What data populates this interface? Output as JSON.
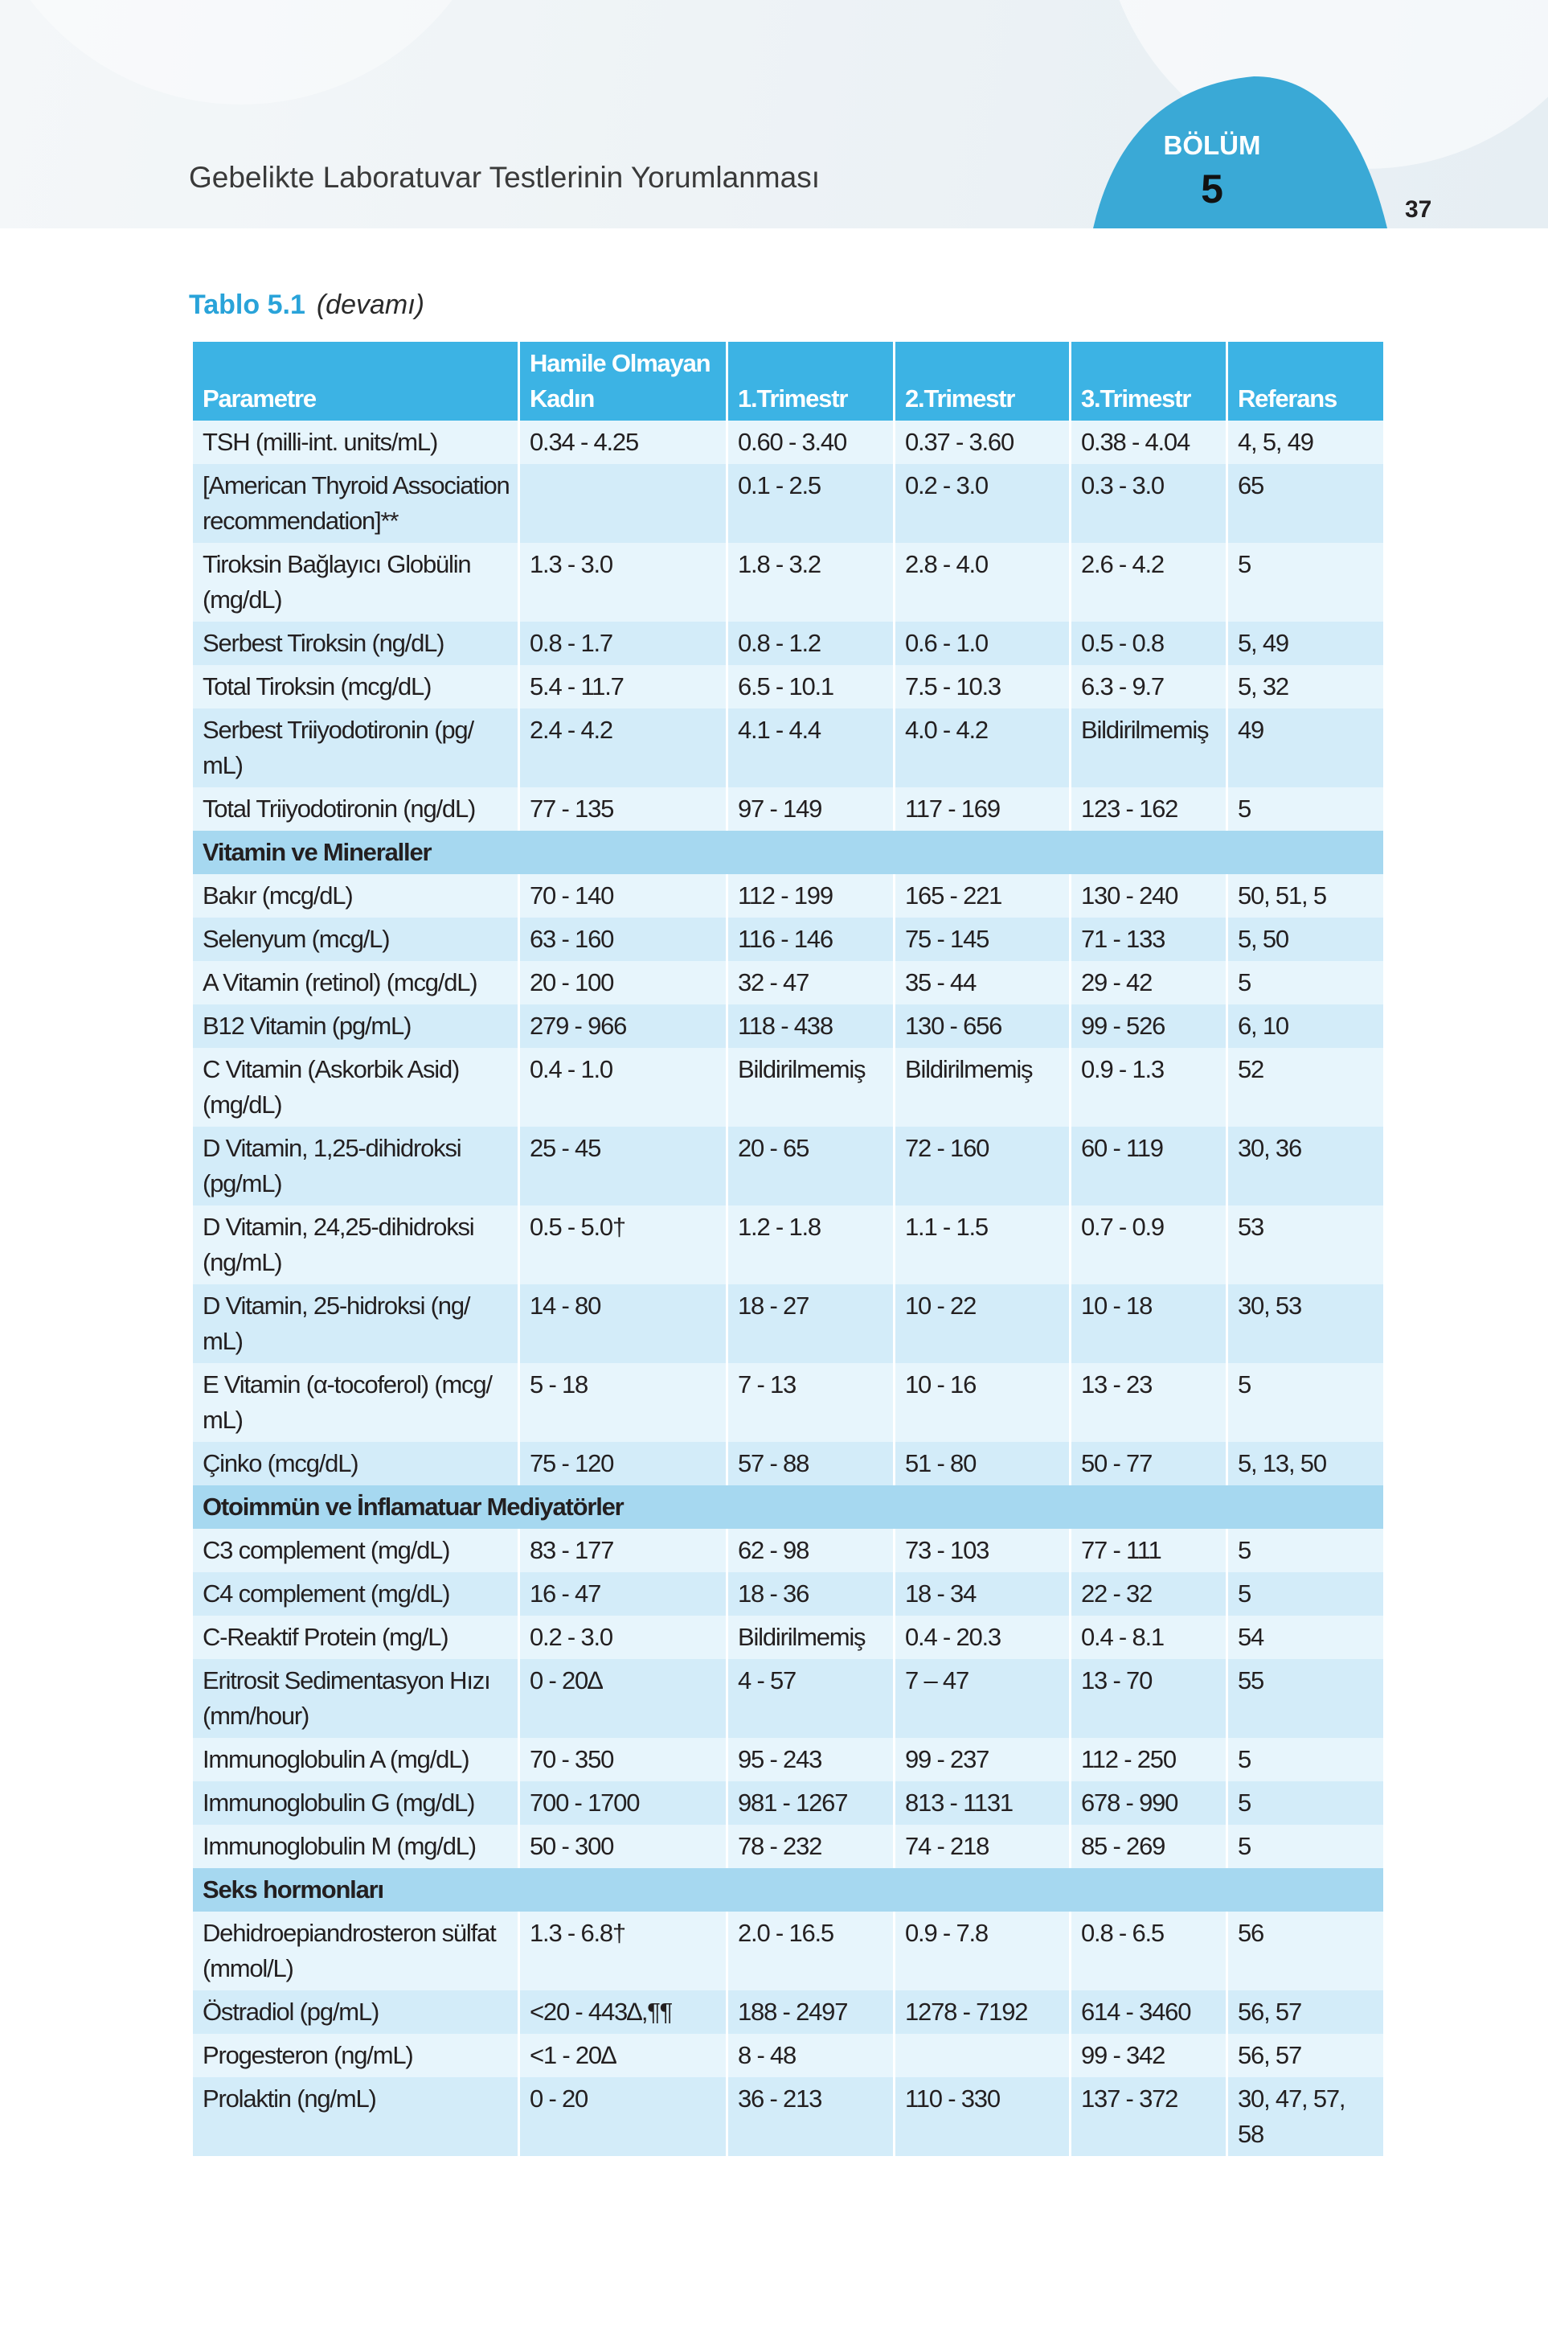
{
  "header": {
    "title": "Gebelikte Laboratuvar Testlerinin Yorumlanması",
    "section_label": "BÖLÜM",
    "section_number": "5",
    "page_number": "37"
  },
  "caption": {
    "label": "Tablo 5.1",
    "note": "(devamı)"
  },
  "table": {
    "columns": [
      "Parametre",
      "Hamile Olmayan Kadın",
      "1.Trimestr",
      "2.Trimestr",
      "3.Trimestr",
      "Referans"
    ],
    "rows": [
      [
        "TSH (milli-int. units/mL)",
        "0.34 - 4.25",
        "0.60 - 3.40",
        "0.37 - 3.60",
        "0.38 - 4.04",
        "4, 5, 49"
      ],
      [
        "[American Thyroid Association recommendation]**",
        null,
        "0.1 - 2.5",
        "0.2 - 3.0",
        "0.3 - 3.0",
        "65"
      ],
      [
        "Tiroksin Bağlayıcı Globülin (mg/dL)",
        "1.3 - 3.0",
        "1.8 - 3.2",
        "2.8 - 4.0",
        "2.6 - 4.2",
        "5"
      ],
      [
        "Serbest Tiroksin (ng/dL)",
        "0.8 - 1.7",
        "0.8 - 1.2",
        "0.6 - 1.0",
        "0.5 - 0.8",
        "5, 49"
      ],
      [
        "Total Tiroksin (mcg/dL)",
        "5.4 - 11.7",
        "6.5 - 10.1",
        "7.5 - 10.3",
        "6.3 - 9.7",
        "5, 32"
      ],
      [
        "Serbest Triiyodotironin (pg/ mL)",
        "2.4 - 4.2",
        "4.1 - 4.4",
        "4.0 - 4.2",
        "Bildirilmemiş",
        "49"
      ],
      [
        "Total Triiyodotironin (ng/dL)",
        "77 - 135",
        "97 - 149",
        "117 - 169",
        "123 - 162",
        "5"
      ],
      {
        "section": "Vitamin ve Mineraller"
      },
      [
        "Bakır (mcg/dL)",
        "70 - 140",
        "112 - 199",
        "165 - 221",
        "130 - 240",
        "50, 51, 5"
      ],
      [
        "Selenyum (mcg/L)",
        "63 - 160",
        "116 - 146",
        "75 - 145",
        "71 - 133",
        "5, 50"
      ],
      [
        "A Vitamin (retinol) (mcg/dL)",
        "20 - 100",
        "32 - 47",
        "35 - 44",
        "29 - 42",
        "5"
      ],
      [
        "B12 Vitamin (pg/mL)",
        "279 - 966",
        "118 - 438",
        "130 - 656",
        "99 - 526",
        "6, 10"
      ],
      [
        "C Vitamin (Askorbik Asid) (mg/dL)",
        "0.4 - 1.0",
        "Bildirilmemiş",
        "Bildirilmemiş",
        "0.9 - 1.3",
        "52"
      ],
      [
        "D Vitamin, 1,25-dihidroksi (pg/mL)",
        "25 - 45",
        "20 - 65",
        "72 - 160",
        "60 - 119",
        "30, 36"
      ],
      [
        "D Vitamin, 24,25-dihidroksi (ng/mL)",
        "0.5 - 5.0†",
        "1.2 - 1.8",
        "1.1 - 1.5",
        "0.7 - 0.9",
        "53"
      ],
      [
        "D Vitamin, 25-hidroksi (ng/ mL)",
        "14 - 80",
        "18 - 27",
        "10 - 22",
        "10 - 18",
        "30, 53"
      ],
      [
        "E Vitamin (α-tocoferol) (mcg/ mL)",
        "5 - 18",
        "7 - 13",
        "10 - 16",
        "13 - 23",
        "5"
      ],
      [
        "Çinko (mcg/dL)",
        "75 - 120",
        "57 - 88",
        "51 - 80",
        "50 - 77",
        "5, 13, 50"
      ],
      {
        "section": "Otoimmün ve İnflamatuar Mediyatörler"
      },
      [
        "C3 complement (mg/dL)",
        "83 - 177",
        "62 - 98",
        "73 - 103",
        "77 - 111",
        "5"
      ],
      [
        "C4 complement (mg/dL)",
        "16 - 47",
        "18 - 36",
        "18 - 34",
        "22 - 32",
        "5"
      ],
      [
        "C-Reaktif Protein (mg/L)",
        "0.2 - 3.0",
        "Bildirilmemiş",
        "0.4 - 20.3",
        "0.4 - 8.1",
        "54"
      ],
      [
        "Eritrosit Sedimentasyon Hızı (mm/hour)",
        "0 - 20∆",
        "4 - 57",
        "7 – 47",
        "13 - 70",
        "55"
      ],
      [
        "Immunoglobulin A (mg/dL)",
        "70 - 350",
        "95 - 243",
        "99 - 237",
        "112 - 250",
        "5"
      ],
      [
        "Immunoglobulin G (mg/dL)",
        "700 - 1700",
        "981 - 1267",
        "813 - 1131",
        "678 - 990",
        "5"
      ],
      [
        "Immunoglobulin M (mg/dL)",
        "50 - 300",
        "78 - 232",
        "74 - 218",
        "85 - 269",
        "5"
      ],
      {
        "section": "Seks hormonları"
      },
      [
        "Dehidroepiandrosteron sülfat (mmol/L)",
        "1.3 - 6.8†",
        "2.0 - 16.5",
        "0.9 - 7.8",
        "0.8 - 6.5",
        "56"
      ],
      [
        "Östradiol (pg/mL)",
        "<20 - 443∆,¶¶",
        "188 - 2497",
        "1278 - 7192",
        "614 - 3460",
        "56, 57"
      ],
      [
        "Progesteron (ng/mL)",
        "<1 - 20∆",
        "8 - 48",
        null,
        "99 - 342",
        "56, 57"
      ],
      [
        "Prolaktin (ng/mL)",
        "0 - 20",
        "36 - 213",
        "110 - 330",
        "137 - 372",
        "30, 47, 57, 58"
      ]
    ]
  }
}
